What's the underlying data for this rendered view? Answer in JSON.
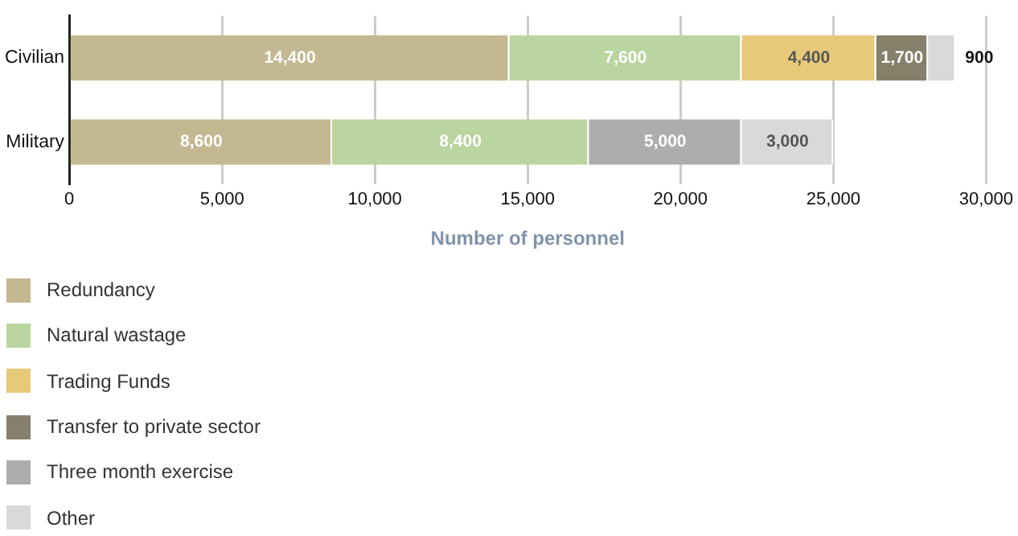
{
  "chart_data": {
    "type": "bar",
    "orientation": "horizontal",
    "stacked": true,
    "xlabel": "Number of personnel",
    "categories": [
      "Civilian",
      "Military"
    ],
    "series": [
      {
        "name": "Redundancy",
        "color": "#c3b891",
        "values": [
          14400,
          8600
        ],
        "value_labels": [
          "14,400",
          "8,600"
        ]
      },
      {
        "name": "Natural wastage",
        "color": "#bad5a0",
        "values": [
          7600,
          8400
        ],
        "value_labels": [
          "7,600",
          "8,400"
        ]
      },
      {
        "name": "Trading Funds",
        "color": "#e6c979",
        "values": [
          4400,
          null
        ],
        "value_labels": [
          "4,400",
          null
        ]
      },
      {
        "name": "Transfer to private sector",
        "color": "#867f6a",
        "values": [
          1700,
          null
        ],
        "value_labels": [
          "1,700",
          null
        ]
      },
      {
        "name": "Three month exercise",
        "color": "#adadad",
        "values": [
          null,
          5000
        ],
        "value_labels": [
          null,
          "5,000"
        ]
      },
      {
        "name": "Other",
        "color": "#d9d9d7",
        "values": [
          900,
          3000
        ],
        "value_labels": [
          "900",
          "3,000"
        ]
      }
    ],
    "xlim": [
      0,
      30000
    ],
    "xticks": [
      {
        "value": 0,
        "label": "0"
      },
      {
        "value": 5000,
        "label": "5,000"
      },
      {
        "value": 10000,
        "label": "10,000"
      },
      {
        "value": 15000,
        "label": "15,000"
      },
      {
        "value": 20000,
        "label": "20,000"
      },
      {
        "value": 25000,
        "label": "25,000"
      },
      {
        "value": 30000,
        "label": "30,000"
      }
    ],
    "grid": "x",
    "legend": "bottom"
  }
}
